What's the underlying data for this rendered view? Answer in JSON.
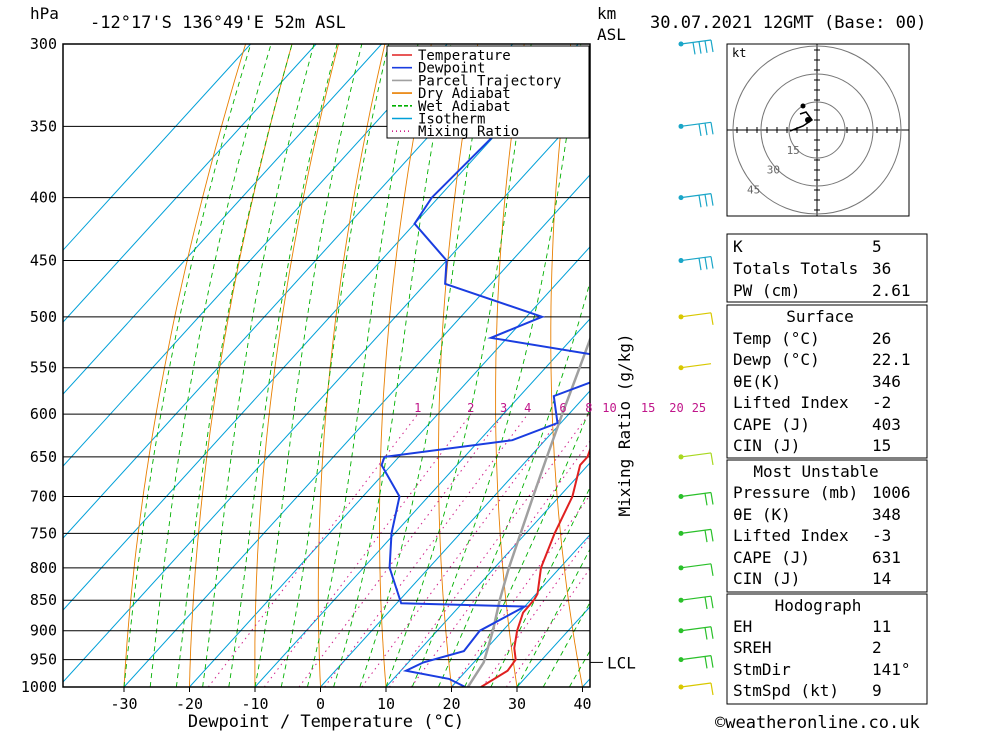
{
  "header": {
    "hpa_unit": "hPa",
    "location": "-12°17'S  136°49'E  52m  ASL",
    "km_unit": "km",
    "asl_unit": "ASL",
    "datetime": "30.07.2021  12GMT  (Base: 00)"
  },
  "chart_data": {
    "type": "line",
    "title": "Skew-T log-P diagram",
    "xlabel": "Dewpoint / Temperature (°C)",
    "ylabel": "hPa",
    "y2label": "Mixing Ratio (g/kg)",
    "xlim": [
      -40,
      40
    ],
    "ylim": [
      1000,
      300
    ],
    "x_ticks": [
      "-30",
      "-20",
      "-10",
      "0",
      "10",
      "20",
      "30",
      "40"
    ],
    "x_tick_values": [
      -30,
      -20,
      -10,
      0,
      10,
      20,
      30,
      40
    ],
    "pressure_levels": [
      300,
      350,
      400,
      450,
      500,
      550,
      600,
      650,
      700,
      750,
      800,
      850,
      900,
      950,
      1000
    ],
    "pressure_labels": [
      "300",
      "350",
      "400",
      "450",
      "500",
      "550",
      "600",
      "650",
      "700",
      "750",
      "800",
      "850",
      "900",
      "950",
      "1000"
    ],
    "mixing_ratio_labels": [
      "1",
      "2",
      "3",
      "4",
      "6",
      "8",
      "10",
      "15",
      "20",
      "25"
    ],
    "mixing_ratio_values": [
      1,
      2,
      3,
      4,
      6,
      8,
      10,
      15,
      20,
      25
    ],
    "lcl_label": "LCL",
    "lcl_pressure": 955,
    "legend": [
      {
        "name": "Temperature",
        "color": "#e02020"
      },
      {
        "name": "Dewpoint",
        "color": "#1a3de0"
      },
      {
        "name": "Parcel Trajectory",
        "color": "#a0a0a0"
      },
      {
        "name": "Dry Adiabat",
        "color": "#e87f00"
      },
      {
        "name": "Wet Adiabat",
        "color": "#00b000"
      },
      {
        "name": "Isotherm",
        "color": "#00a0d8"
      },
      {
        "name": "Mixing Ratio",
        "color": "#d0208a"
      }
    ],
    "series": [
      {
        "name": "Temperature",
        "points": [
          [
            1000,
            24.5
          ],
          [
            970,
            26.3
          ],
          [
            950,
            26
          ],
          [
            930,
            24.2
          ],
          [
            900,
            22.2
          ],
          [
            870,
            20.6
          ],
          [
            850,
            20.5
          ],
          [
            840,
            20.2
          ],
          [
            800,
            17.1
          ],
          [
            750,
            14.4
          ],
          [
            700,
            12
          ],
          [
            660,
            8.8
          ],
          [
            650,
            8.8
          ],
          [
            600,
            5.1
          ],
          [
            570,
            3
          ],
          [
            540,
            1.2
          ],
          [
            500,
            0
          ],
          [
            470,
            -3.7
          ],
          [
            450,
            -6.2
          ],
          [
            430,
            -8.6
          ],
          [
            400,
            -12
          ],
          [
            370,
            -16.6
          ],
          [
            350,
            -20
          ],
          [
            330,
            -24
          ],
          [
            300,
            -30
          ]
        ]
      },
      {
        "name": "Dewpoint",
        "points": [
          [
            1000,
            22.1
          ],
          [
            985,
            18.5
          ],
          [
            970,
            10.8
          ],
          [
            955,
            12.3
          ],
          [
            935,
            16.9
          ],
          [
            900,
            16.5
          ],
          [
            860,
            20
          ],
          [
            855,
            0.7
          ],
          [
            800,
            -6
          ],
          [
            750,
            -10.5
          ],
          [
            700,
            -14.4
          ],
          [
            660,
            -21.5
          ],
          [
            650,
            -22.2
          ],
          [
            630,
            -5
          ],
          [
            610,
            -0.5
          ],
          [
            580,
            -4.8
          ],
          [
            545,
            4.2
          ],
          [
            520,
            -22.5
          ],
          [
            500,
            -17.6
          ],
          [
            470,
            -37
          ],
          [
            450,
            -40
          ],
          [
            420,
            -50
          ],
          [
            400,
            -51
          ],
          [
            350,
            -50
          ],
          [
            300,
            -46
          ]
        ]
      },
      {
        "name": "Parcel Trajectory",
        "points": [
          [
            1000,
            22.5
          ],
          [
            955,
            21.5
          ],
          [
            900,
            18.5
          ],
          [
            850,
            15.3
          ],
          [
            800,
            12.2
          ],
          [
            750,
            9.2
          ],
          [
            700,
            6
          ],
          [
            650,
            2.6
          ],
          [
            600,
            -1
          ],
          [
            550,
            -4.8
          ],
          [
            500,
            -9
          ],
          [
            450,
            -14
          ],
          [
            400,
            -20.5
          ],
          [
            350,
            -28
          ],
          [
            300,
            -36
          ]
        ]
      }
    ]
  },
  "hodograph": {
    "unit": "kt",
    "rings": [
      "15",
      "30",
      "45"
    ]
  },
  "indices": {
    "k_label": "K",
    "k_value": "5",
    "tt_label": "Totals Totals",
    "tt_value": "36",
    "pw_label": "PW (cm)",
    "pw_value": "2.61"
  },
  "surface": {
    "title": "Surface",
    "temp_label": "Temp (°C)",
    "temp_value": "26",
    "dewp_label": "Dewp (°C)",
    "dewp_value": "22.1",
    "theta_label": "θE(K)",
    "theta_value": "346",
    "li_label": "Lifted Index",
    "li_value": "-2",
    "cape_label": "CAPE (J)",
    "cape_value": "403",
    "cin_label": "CIN (J)",
    "cin_value": "15"
  },
  "most_unstable": {
    "title": "Most Unstable",
    "pressure_label": "Pressure (mb)",
    "pressure_value": "1006",
    "theta_label": "θE (K)",
    "theta_value": "348",
    "li_label": "Lifted Index",
    "li_value": "-3",
    "cape_label": "CAPE (J)",
    "cape_value": "631",
    "cin_label": "CIN (J)",
    "cin_value": "14"
  },
  "hodo_table": {
    "title": "Hodograph",
    "eh_label": "EH",
    "eh_value": "11",
    "sreh_label": "SREH",
    "sreh_value": "2",
    "stmdir_label": "StmDir",
    "stmdir_value": "141°",
    "stmspd_label": "StmSpd (kt)",
    "stmspd_value": "9"
  },
  "footer": {
    "copyright": "©weatheronline.co.uk"
  }
}
